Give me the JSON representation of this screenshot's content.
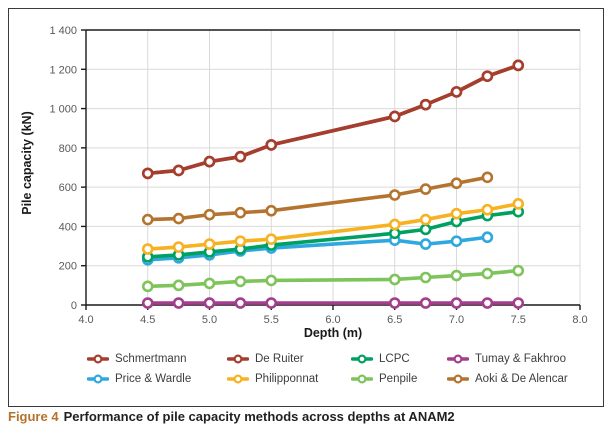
{
  "figure": {
    "caption": {
      "prefix": "Figure 4",
      "prefix_color": "#b5722c",
      "text": "Performance of pile capacity methods across depths at ANAM2"
    }
  },
  "chart_data": {
    "type": "line",
    "title": "",
    "xlabel": "Depth (m)",
    "ylabel": "Pile capacity (kN)",
    "xlim": [
      4.0,
      8.0
    ],
    "ylim": [
      0,
      1400
    ],
    "grid": true,
    "legend_position": "bottom",
    "x_ticks": [
      4.0,
      4.5,
      5.0,
      5.5,
      6.0,
      6.5,
      7.0,
      7.5,
      8.0
    ],
    "x_tick_labels": [
      "4.0",
      "4.5",
      "5.0",
      "5.5",
      "6.0",
      "6.5",
      "7.0",
      "7.5",
      "8.0"
    ],
    "y_ticks": [
      0,
      200,
      400,
      600,
      800,
      1000,
      1200,
      1400
    ],
    "y_tick_labels": [
      "0",
      "200",
      "400",
      "600",
      "800",
      "1 000",
      "1 200",
      "1 400"
    ],
    "style": {
      "grid_color": "#d9d9d9",
      "axis_color": "#1a1a1a",
      "tick_label_color": "#595959",
      "marker_fill": "#ffffff"
    },
    "series": [
      {
        "name": "Price & Wardle",
        "color": "#2fa8df",
        "x": [
          4.5,
          4.75,
          5.0,
          5.25,
          5.5,
          6.5,
          6.75,
          7.0,
          7.25
        ],
        "values": [
          230,
          240,
          255,
          275,
          290,
          330,
          310,
          325,
          345
        ]
      },
      {
        "name": "LCPC",
        "color": "#00a160",
        "x": [
          4.5,
          4.75,
          5.0,
          5.25,
          5.5,
          6.5,
          6.75,
          7.0,
          7.25,
          7.5
        ],
        "values": [
          245,
          255,
          270,
          285,
          305,
          365,
          385,
          425,
          455,
          475
        ]
      },
      {
        "name": "Philipponnat",
        "color": "#f6b221",
        "x": [
          4.5,
          4.75,
          5.0,
          5.25,
          5.5,
          6.5,
          6.75,
          7.0,
          7.25,
          7.5
        ],
        "values": [
          285,
          295,
          310,
          325,
          335,
          410,
          435,
          465,
          485,
          515
        ]
      },
      {
        "name": "Penpile",
        "color": "#7ec45a",
        "x": [
          4.5,
          4.75,
          5.0,
          5.25,
          5.5,
          6.5,
          6.75,
          7.0,
          7.25,
          7.5
        ],
        "values": [
          95,
          100,
          110,
          120,
          125,
          130,
          140,
          150,
          160,
          175
        ]
      },
      {
        "name": "Tumay & Fakhroo",
        "color": "#a23e8c",
        "x": [
          4.5,
          4.75,
          5.0,
          5.25,
          5.5,
          6.5,
          6.75,
          7.0,
          7.25,
          7.5
        ],
        "values": [
          10,
          10,
          10,
          10,
          10,
          10,
          10,
          10,
          10,
          10
        ]
      },
      {
        "name": "Aoki & De Alencar",
        "color": "#b4742f",
        "x": [
          4.5,
          4.75,
          5.0,
          5.25,
          5.5,
          6.5,
          6.75,
          7.0,
          7.25
        ],
        "values": [
          435,
          440,
          460,
          470,
          480,
          560,
          590,
          620,
          650
        ]
      },
      {
        "name": "Schmertmann",
        "color": "#a63e2e",
        "x": [
          4.5,
          4.75,
          5.0,
          5.25,
          5.5,
          6.5,
          6.75,
          7.0,
          7.25,
          7.5
        ],
        "values": [
          670,
          685,
          730,
          755,
          815,
          960,
          1020,
          1085,
          1165,
          1220
        ]
      },
      {
        "name": "De Ruiter",
        "color": "#a63e2e",
        "x": [
          4.5,
          4.75,
          5.0,
          5.25,
          5.5,
          6.5,
          6.75,
          7.0,
          7.25,
          7.5
        ],
        "values": [
          670,
          685,
          730,
          755,
          815,
          960,
          1020,
          1085,
          1165,
          1220
        ]
      }
    ],
    "legend_rows": [
      [
        "Schmertmann",
        "De Ruiter",
        "LCPC",
        "Tumay & Fakhroo"
      ],
      [
        "Price & Wardle",
        "Philipponnat",
        "Penpile",
        "Aoki & De Alencar"
      ]
    ]
  }
}
